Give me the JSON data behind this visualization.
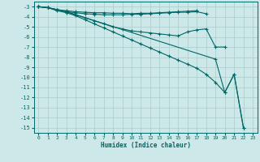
{
  "bg_color": "#cce8e8",
  "grid_color": "#aacccc",
  "line_color": "#006666",
  "xlabel": "Humidex (Indice chaleur)",
  "ylim": [
    -15.5,
    -2.5
  ],
  "xlim": [
    -0.5,
    23.5
  ],
  "yticks": [
    -3,
    -4,
    -5,
    -6,
    -7,
    -8,
    -9,
    -10,
    -11,
    -12,
    -13,
    -14,
    -15
  ],
  "xticks": [
    0,
    1,
    2,
    3,
    4,
    5,
    6,
    7,
    8,
    9,
    10,
    11,
    12,
    13,
    14,
    15,
    16,
    17,
    18,
    19,
    20,
    21,
    22,
    23
  ],
  "lines": [
    {
      "x": [
        0,
        1,
        2,
        3,
        4,
        5,
        6,
        7,
        8,
        9,
        10,
        11,
        12,
        13,
        14,
        15,
        16,
        17
      ],
      "y": [
        -3.0,
        -3.1,
        -3.3,
        -3.4,
        -3.5,
        -3.55,
        -3.6,
        -3.6,
        -3.65,
        -3.65,
        -3.7,
        -3.65,
        -3.65,
        -3.6,
        -3.55,
        -3.5,
        -3.45,
        -3.4
      ],
      "marker": "+",
      "ms": 3
    },
    {
      "x": [
        0,
        1,
        2,
        3,
        4,
        5,
        6,
        7,
        8,
        9,
        10,
        11,
        12,
        13,
        14,
        15,
        16,
        17,
        18
      ],
      "y": [
        -3.0,
        -3.1,
        -3.3,
        -3.5,
        -3.6,
        -3.7,
        -3.75,
        -3.8,
        -3.8,
        -3.8,
        -3.75,
        -3.75,
        -3.7,
        -3.65,
        -3.6,
        -3.55,
        -3.55,
        -3.5,
        -3.7
      ],
      "marker": "+",
      "ms": 3
    },
    {
      "x": [
        0,
        1,
        2,
        3,
        4,
        5,
        6,
        7,
        8,
        9,
        10,
        11,
        12,
        13,
        14,
        15,
        16,
        17,
        18,
        19,
        20
      ],
      "y": [
        -3.0,
        -3.1,
        -3.3,
        -3.5,
        -3.8,
        -4.1,
        -4.4,
        -4.7,
        -5.0,
        -5.2,
        -5.4,
        -5.5,
        -5.6,
        -5.7,
        -5.8,
        -5.9,
        -5.5,
        -5.3,
        -5.2,
        -7.0,
        -7.0
      ],
      "marker": "+",
      "ms": 3
    },
    {
      "x": [
        0,
        1,
        2,
        3,
        4,
        5,
        6,
        7,
        8,
        9,
        10,
        11,
        12,
        13,
        14,
        15,
        16,
        17,
        18,
        19,
        20,
        21,
        22
      ],
      "y": [
        -3.0,
        -3.1,
        -3.4,
        -3.6,
        -3.9,
        -4.3,
        -4.7,
        -5.1,
        -5.5,
        -5.9,
        -6.3,
        -6.7,
        -7.1,
        -7.5,
        -7.9,
        -8.3,
        -8.7,
        -9.1,
        -9.7,
        -10.5,
        -11.5,
        -9.7,
        -15.0
      ],
      "marker": "+",
      "ms": 3
    },
    {
      "x": [
        0,
        1,
        2,
        3,
        19,
        20,
        21,
        22
      ],
      "y": [
        -3.0,
        -3.1,
        -3.3,
        -3.5,
        -8.2,
        -11.5,
        -9.7,
        -15.0
      ],
      "marker": "+",
      "ms": 3
    }
  ]
}
